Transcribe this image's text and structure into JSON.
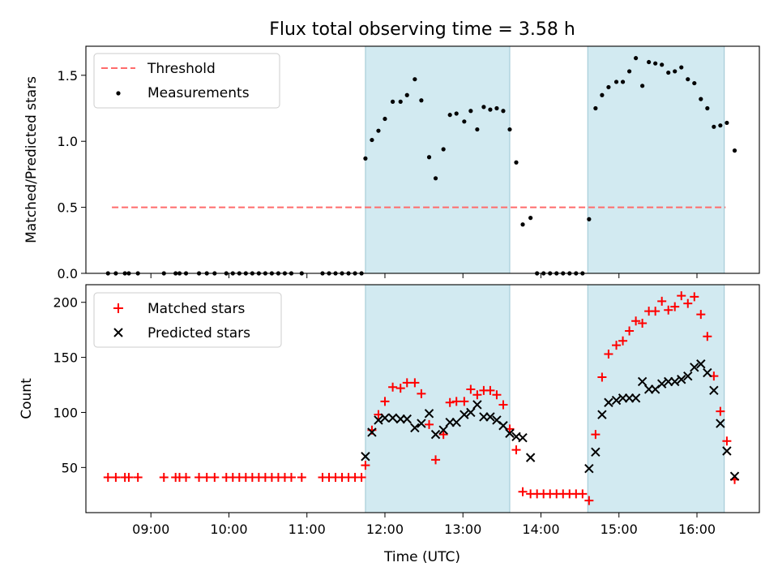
{
  "title": "Flux total observing time = 3.58 h",
  "xlabel": "Time (UTC)",
  "colors": {
    "shade": "#add8e6",
    "threshold": "#ff6b6b",
    "measurement": "#000000",
    "matched": "#ff0000",
    "predicted": "#000000"
  },
  "chart_data": [
    {
      "type": "scatter",
      "ylabel": "Matched/Predicted stars",
      "xlim": [
        "08:10",
        "16:48"
      ],
      "ylim": [
        0,
        1.72
      ],
      "yticks": [
        0.0,
        0.5,
        1.0,
        1.5
      ],
      "ytick_labels": [
        "0.0",
        "0.5",
        "1.0",
        "1.5"
      ],
      "legend_placement": "upper left",
      "legend": [
        "Threshold",
        "Measurements"
      ],
      "shaded_intervals": [
        [
          "11:45",
          "13:36"
        ],
        [
          "14:36",
          "16:21"
        ]
      ],
      "threshold": {
        "name": "Threshold",
        "y": 0.5,
        "x_from": "08:30",
        "x_to": "16:22",
        "style": "dashed"
      },
      "measurements": {
        "name": "Measurements",
        "points": [
          [
            "08:27",
            0.0
          ],
          [
            "08:33",
            0.0
          ],
          [
            "08:40",
            0.0
          ],
          [
            "08:43",
            0.0
          ],
          [
            "08:50",
            0.0
          ],
          [
            "09:10",
            0.0
          ],
          [
            "09:19",
            0.0
          ],
          [
            "09:22",
            0.0
          ],
          [
            "09:27",
            0.0
          ],
          [
            "09:37",
            0.0
          ],
          [
            "09:43",
            0.0
          ],
          [
            "09:49",
            0.0
          ],
          [
            "09:58",
            0.0
          ],
          [
            "10:03",
            0.0
          ],
          [
            "10:08",
            0.0
          ],
          [
            "10:13",
            0.0
          ],
          [
            "10:18",
            0.0
          ],
          [
            "10:23",
            0.0
          ],
          [
            "10:28",
            0.0
          ],
          [
            "10:33",
            0.0
          ],
          [
            "10:38",
            0.0
          ],
          [
            "10:43",
            0.0
          ],
          [
            "10:48",
            0.0
          ],
          [
            "10:56",
            0.0
          ],
          [
            "11:12",
            0.0
          ],
          [
            "11:17",
            0.0
          ],
          [
            "11:22",
            0.0
          ],
          [
            "11:27",
            0.0
          ],
          [
            "11:32",
            0.0
          ],
          [
            "11:37",
            0.0
          ],
          [
            "11:42",
            0.0
          ],
          [
            "11:45",
            0.87
          ],
          [
            "11:50",
            1.01
          ],
          [
            "11:55",
            1.08
          ],
          [
            "12:00",
            1.17
          ],
          [
            "12:06",
            1.3
          ],
          [
            "12:12",
            1.3
          ],
          [
            "12:17",
            1.35
          ],
          [
            "12:23",
            1.47
          ],
          [
            "12:28",
            1.31
          ],
          [
            "12:34",
            0.88
          ],
          [
            "12:39",
            0.72
          ],
          [
            "12:45",
            0.94
          ],
          [
            "12:50",
            1.2
          ],
          [
            "12:55",
            1.21
          ],
          [
            "13:01",
            1.15
          ],
          [
            "13:06",
            1.23
          ],
          [
            "13:11",
            1.09
          ],
          [
            "13:16",
            1.26
          ],
          [
            "13:21",
            1.24
          ],
          [
            "13:26",
            1.25
          ],
          [
            "13:31",
            1.23
          ],
          [
            "13:36",
            1.09
          ],
          [
            "13:41",
            0.84
          ],
          [
            "13:46",
            0.37
          ],
          [
            "13:52",
            0.42
          ],
          [
            "13:57",
            0.0
          ],
          [
            "14:02",
            0.0
          ],
          [
            "14:07",
            0.0
          ],
          [
            "14:12",
            0.0
          ],
          [
            "14:17",
            0.0
          ],
          [
            "14:22",
            0.0
          ],
          [
            "14:27",
            0.0
          ],
          [
            "14:32",
            0.0
          ],
          [
            "14:37",
            0.41
          ],
          [
            "14:42",
            1.25
          ],
          [
            "14:47",
            1.35
          ],
          [
            "14:52",
            1.41
          ],
          [
            "14:58",
            1.45
          ],
          [
            "15:03",
            1.45
          ],
          [
            "15:08",
            1.53
          ],
          [
            "15:13",
            1.63
          ],
          [
            "15:18",
            1.42
          ],
          [
            "15:23",
            1.6
          ],
          [
            "15:28",
            1.59
          ],
          [
            "15:33",
            1.58
          ],
          [
            "15:38",
            1.52
          ],
          [
            "15:43",
            1.53
          ],
          [
            "15:48",
            1.56
          ],
          [
            "15:53",
            1.47
          ],
          [
            "15:58",
            1.44
          ],
          [
            "16:03",
            1.32
          ],
          [
            "16:08",
            1.25
          ],
          [
            "16:13",
            1.11
          ],
          [
            "16:18",
            1.12
          ],
          [
            "16:23",
            1.14
          ],
          [
            "16:29",
            0.93
          ]
        ]
      }
    },
    {
      "type": "scatter",
      "ylabel": "Count",
      "xlim": [
        "08:10",
        "16:48"
      ],
      "ylim": [
        9,
        216
      ],
      "yticks": [
        50,
        100,
        150,
        200
      ],
      "ytick_labels": [
        "50",
        "100",
        "150",
        "200"
      ],
      "xticks": [
        "09:00",
        "10:00",
        "11:00",
        "12:00",
        "13:00",
        "14:00",
        "15:00",
        "16:00"
      ],
      "xtick_labels": [
        "09:00",
        "10:00",
        "11:00",
        "12:00",
        "13:00",
        "14:00",
        "15:00",
        "16:00"
      ],
      "legend_placement": "upper left",
      "legend": [
        "Matched stars",
        "Predicted stars"
      ],
      "shaded_intervals": [
        [
          "11:45",
          "13:36"
        ],
        [
          "14:36",
          "16:21"
        ]
      ],
      "series": [
        {
          "name": "Matched stars",
          "marker": "+",
          "points": [
            [
              "08:27",
              41
            ],
            [
              "08:33",
              41
            ],
            [
              "08:40",
              41
            ],
            [
              "08:43",
              41
            ],
            [
              "08:50",
              41
            ],
            [
              "09:10",
              41
            ],
            [
              "09:19",
              41
            ],
            [
              "09:22",
              41
            ],
            [
              "09:27",
              41
            ],
            [
              "09:37",
              41
            ],
            [
              "09:43",
              41
            ],
            [
              "09:49",
              41
            ],
            [
              "09:58",
              41
            ],
            [
              "10:03",
              41
            ],
            [
              "10:08",
              41
            ],
            [
              "10:13",
              41
            ],
            [
              "10:18",
              41
            ],
            [
              "10:23",
              41
            ],
            [
              "10:28",
              41
            ],
            [
              "10:33",
              41
            ],
            [
              "10:38",
              41
            ],
            [
              "10:43",
              41
            ],
            [
              "10:48",
              41
            ],
            [
              "10:56",
              41
            ],
            [
              "11:12",
              41
            ],
            [
              "11:17",
              41
            ],
            [
              "11:22",
              41
            ],
            [
              "11:27",
              41
            ],
            [
              "11:32",
              41
            ],
            [
              "11:37",
              41
            ],
            [
              "11:42",
              41
            ],
            [
              "11:45",
              52
            ],
            [
              "11:50",
              84
            ],
            [
              "11:55",
              98
            ],
            [
              "12:00",
              110
            ],
            [
              "12:06",
              123
            ],
            [
              "12:12",
              122
            ],
            [
              "12:17",
              127
            ],
            [
              "12:23",
              127
            ],
            [
              "12:28",
              117
            ],
            [
              "12:34",
              89
            ],
            [
              "12:39",
              57
            ],
            [
              "12:45",
              80
            ],
            [
              "12:50",
              109
            ],
            [
              "12:55",
              110
            ],
            [
              "13:01",
              110
            ],
            [
              "13:06",
              121
            ],
            [
              "13:11",
              116
            ],
            [
              "13:16",
              120
            ],
            [
              "13:21",
              120
            ],
            [
              "13:26",
              116
            ],
            [
              "13:31",
              107
            ],
            [
              "13:36",
              85
            ],
            [
              "13:41",
              66
            ],
            [
              "13:46",
              28
            ],
            [
              "13:52",
              26
            ],
            [
              "13:57",
              26
            ],
            [
              "14:02",
              26
            ],
            [
              "14:07",
              26
            ],
            [
              "14:12",
              26
            ],
            [
              "14:17",
              26
            ],
            [
              "14:22",
              26
            ],
            [
              "14:27",
              26
            ],
            [
              "14:32",
              26
            ],
            [
              "14:37",
              20
            ],
            [
              "14:42",
              80
            ],
            [
              "14:47",
              132
            ],
            [
              "14:52",
              153
            ],
            [
              "14:58",
              161
            ],
            [
              "15:03",
              165
            ],
            [
              "15:08",
              174
            ],
            [
              "15:13",
              183
            ],
            [
              "15:18",
              181
            ],
            [
              "15:23",
              192
            ],
            [
              "15:28",
              192
            ],
            [
              "15:33",
              201
            ],
            [
              "15:38",
              193
            ],
            [
              "15:43",
              196
            ],
            [
              "15:48",
              206
            ],
            [
              "15:53",
              199
            ],
            [
              "15:58",
              205
            ],
            [
              "16:03",
              189
            ],
            [
              "16:08",
              169
            ],
            [
              "16:13",
              133
            ],
            [
              "16:18",
              101
            ],
            [
              "16:23",
              74
            ],
            [
              "16:29",
              39
            ]
          ]
        },
        {
          "name": "Predicted stars",
          "marker": "x",
          "points": [
            [
              "11:45",
              60
            ],
            [
              "11:50",
              82
            ],
            [
              "11:55",
              93
            ],
            [
              "12:00",
              95
            ],
            [
              "12:06",
              95
            ],
            [
              "12:12",
              94
            ],
            [
              "12:17",
              94
            ],
            [
              "12:23",
              86
            ],
            [
              "12:28",
              90
            ],
            [
              "12:34",
              99
            ],
            [
              "12:39",
              80
            ],
            [
              "12:45",
              84
            ],
            [
              "12:50",
              91
            ],
            [
              "12:55",
              91
            ],
            [
              "13:01",
              98
            ],
            [
              "13:06",
              100
            ],
            [
              "13:11",
              107
            ],
            [
              "13:16",
              96
            ],
            [
              "13:21",
              96
            ],
            [
              "13:26",
              93
            ],
            [
              "13:31",
              88
            ],
            [
              "13:36",
              81
            ],
            [
              "13:41",
              78
            ],
            [
              "13:46",
              77
            ],
            [
              "13:52",
              59
            ],
            [
              "14:37",
              49
            ],
            [
              "14:42",
              64
            ],
            [
              "14:47",
              98
            ],
            [
              "14:52",
              109
            ],
            [
              "14:58",
              111
            ],
            [
              "15:03",
              113
            ],
            [
              "15:08",
              113
            ],
            [
              "15:13",
              113
            ],
            [
              "15:18",
              128
            ],
            [
              "15:23",
              121
            ],
            [
              "15:28",
              121
            ],
            [
              "15:33",
              126
            ],
            [
              "15:38",
              128
            ],
            [
              "15:43",
              128
            ],
            [
              "15:48",
              130
            ],
            [
              "15:53",
              133
            ],
            [
              "15:58",
              141
            ],
            [
              "16:03",
              144
            ],
            [
              "16:08",
              136
            ],
            [
              "16:13",
              120
            ],
            [
              "16:18",
              90
            ],
            [
              "16:23",
              65
            ],
            [
              "16:29",
              42
            ]
          ]
        }
      ]
    }
  ]
}
